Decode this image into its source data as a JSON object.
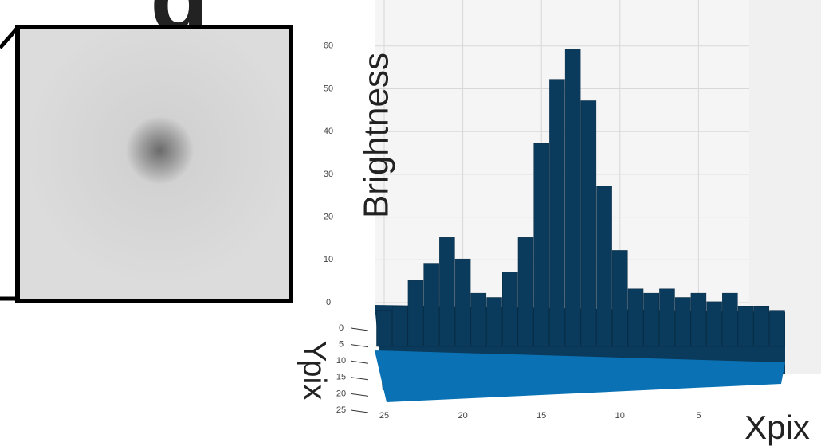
{
  "panel_label": "g",
  "chart_data": {
    "type": "bar3d",
    "zlabel": "Brightness",
    "ylabel": "Ypix",
    "xlabel": "Xpix",
    "x": [
      0,
      1,
      2,
      3,
      4,
      5,
      6,
      7,
      8,
      9,
      10,
      11,
      12,
      13,
      14,
      15,
      16,
      17,
      18,
      19,
      20,
      21,
      22,
      23,
      24,
      25
    ],
    "values": [
      1,
      2,
      2,
      5,
      3,
      5,
      4,
      6,
      5,
      6,
      15,
      30,
      50,
      62,
      55,
      40,
      18,
      10,
      4,
      5,
      13,
      18,
      12,
      8,
      2,
      1
    ],
    "color": "#0b3b5c",
    "zlim": [
      0,
      70
    ],
    "zticks": [
      0,
      10,
      20,
      30,
      40,
      50,
      60
    ],
    "xlim": [
      0,
      25
    ],
    "xticks": [
      25,
      20,
      15,
      10,
      5
    ],
    "ylim": [
      0,
      25
    ],
    "yticks": [
      0,
      5,
      10,
      15,
      20,
      25
    ]
  }
}
